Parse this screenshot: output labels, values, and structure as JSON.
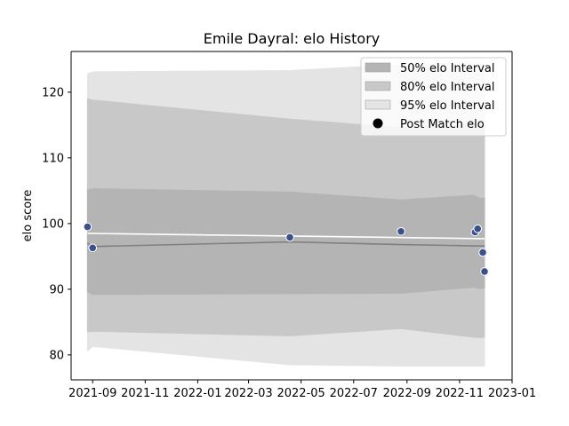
{
  "chart_data": {
    "type": "area",
    "title": "Emile Dayral: elo History",
    "xlabel": "",
    "ylabel": "elo score",
    "xlim": [
      "2021-08-07",
      "2023-01-01"
    ],
    "ylim": [
      76.2,
      126.2
    ],
    "x_ticks": [
      "2021-09",
      "2021-11",
      "2022-01",
      "2022-03",
      "2022-05",
      "2022-07",
      "2022-09",
      "2022-11",
      "2023-01"
    ],
    "y_ticks": [
      80,
      90,
      100,
      110,
      120
    ],
    "grid": false,
    "legend_position": "top-right",
    "bands": [
      {
        "name": "95% elo Interval",
        "color": "#e4e4e4",
        "x": [
          "2021-08-26",
          "2021-09-01",
          "2022-04-18",
          "2022-08-25",
          "2022-11-17",
          "2022-11-25",
          "2022-11-30"
        ],
        "lower": [
          80.6,
          81.3,
          78.5,
          78.3,
          78.3,
          78.3,
          78.3
        ],
        "upper": [
          122.8,
          123.1,
          123.3,
          124.2,
          124.5,
          124.4,
          124.2
        ]
      },
      {
        "name": "80% elo Interval",
        "color": "#c8c8c8",
        "x": [
          "2021-08-26",
          "2021-09-01",
          "2022-04-18",
          "2022-08-25",
          "2022-11-17",
          "2022-11-25",
          "2022-11-30"
        ],
        "lower": [
          83.5,
          83.6,
          82.9,
          84.0,
          82.7,
          82.6,
          82.7
        ],
        "upper": [
          119.0,
          118.8,
          115.9,
          114.6,
          115.0,
          115.4,
          115.2
        ]
      },
      {
        "name": "50% elo Interval",
        "color": "#b4b4b4",
        "x": [
          "2021-08-26",
          "2021-09-01",
          "2022-04-18",
          "2022-08-25",
          "2022-11-17",
          "2022-11-25",
          "2022-11-30"
        ],
        "lower": [
          89.6,
          89.2,
          89.3,
          89.4,
          90.3,
          90.1,
          90.2
        ],
        "upper": [
          105.1,
          105.3,
          104.8,
          103.6,
          104.3,
          103.8,
          103.9
        ]
      }
    ],
    "lines": [
      {
        "name": "mean",
        "color": "#808080",
        "x": [
          "2021-08-26",
          "2021-09-01",
          "2022-04-18",
          "2022-08-25",
          "2022-11-17",
          "2022-11-25",
          "2022-11-30"
        ],
        "values": [
          97.0,
          96.5,
          97.2,
          96.8,
          96.6,
          96.6,
          96.6
        ]
      },
      {
        "name": "expected",
        "color": "#ffffff",
        "x": [
          "2021-08-26",
          "2022-04-18",
          "2022-11-30"
        ],
        "values": [
          98.5,
          98.1,
          97.7
        ]
      }
    ],
    "points": {
      "name": "Post Match elo",
      "color": "#3b4f8c",
      "x": [
        "2021-08-26",
        "2021-09-01",
        "2022-04-18",
        "2022-08-25",
        "2022-11-19",
        "2022-11-22",
        "2022-11-28",
        "2022-11-30"
      ],
      "values": [
        99.5,
        96.3,
        97.9,
        98.8,
        98.7,
        99.2,
        95.6,
        92.7
      ]
    },
    "legend": [
      {
        "label": "50% elo Interval",
        "color": "#b4b4b4",
        "kind": "patch"
      },
      {
        "label": "80% elo Interval",
        "color": "#c8c8c8",
        "kind": "patch"
      },
      {
        "label": "95% elo Interval",
        "color": "#e4e4e4",
        "kind": "patch"
      },
      {
        "label": "Post Match elo",
        "color": "#000000",
        "kind": "marker"
      }
    ]
  }
}
